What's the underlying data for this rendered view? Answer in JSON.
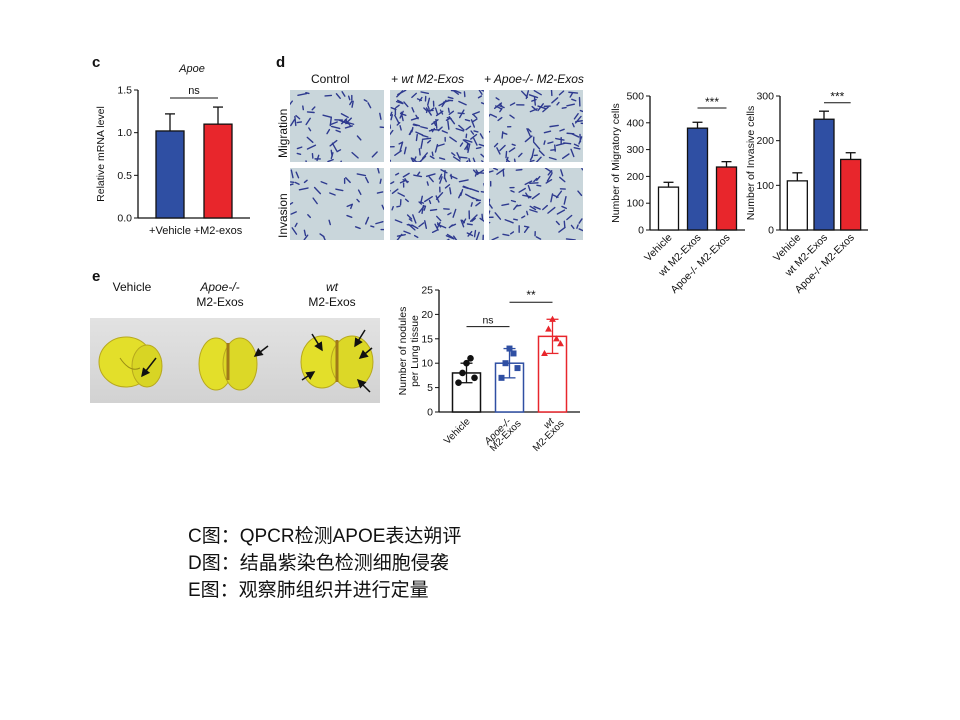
{
  "panels": {
    "c": "c",
    "d": "d",
    "e": "e"
  },
  "chart_data": [
    {
      "panel": "c",
      "type": "bar",
      "title": "Apoe",
      "ylabel": "Relative mRNA level",
      "categories": [
        "+Vehicle",
        "+M2-exos"
      ],
      "values": [
        1.02,
        1.1
      ],
      "errors": [
        0.2,
        0.2
      ],
      "colors": [
        "#2f4fa3",
        "#e8262c"
      ],
      "ylim": [
        0,
        1.5
      ],
      "yticks": [
        "0.0",
        "0.5",
        "1.0",
        "1.5"
      ],
      "significance": "ns"
    },
    {
      "panel": "d-migration",
      "type": "bar",
      "ylabel": "Number of  Migratory cells",
      "categories": [
        "Vehicle",
        "wt M2-Exos",
        "Apoe-/- M2-Exos"
      ],
      "values": [
        160,
        380,
        235
      ],
      "errors": [
        18,
        22,
        20
      ],
      "colors": [
        "#ffffff",
        "#2f4fa3",
        "#e8262c"
      ],
      "ylim": [
        0,
        500
      ],
      "yticks": [
        "0",
        "100",
        "200",
        "300",
        "400",
        "500"
      ],
      "significance": "***"
    },
    {
      "panel": "d-invasion",
      "type": "bar",
      "ylabel": "Number of Invasive cells",
      "categories": [
        "Vehicle",
        "wt M2-Exos",
        "Apoe-/- M2-Exos"
      ],
      "values": [
        110,
        248,
        158
      ],
      "errors": [
        18,
        18,
        15
      ],
      "colors": [
        "#ffffff",
        "#2f4fa3",
        "#e8262c"
      ],
      "ylim": [
        0,
        300
      ],
      "yticks": [
        "0",
        "100",
        "200",
        "300"
      ],
      "significance": "***"
    },
    {
      "panel": "e",
      "type": "scatter",
      "ylabel": "Number of nodules per Lung tissue",
      "categories": [
        "Vehicle",
        "Apoe-/- M2-Exos",
        "wt M2-Exos"
      ],
      "values": [
        8,
        10,
        15.5
      ],
      "errors": [
        2,
        3,
        3.5
      ],
      "points": [
        [
          6,
          8,
          10,
          11,
          7
        ],
        [
          7,
          10,
          13,
          12,
          9
        ],
        [
          12,
          17,
          19,
          15,
          14
        ]
      ],
      "colors": [
        "#111111",
        "#2f4fa3",
        "#e8262c"
      ],
      "ylim": [
        0,
        25
      ],
      "yticks": [
        "0",
        "5",
        "10",
        "15",
        "20",
        "25"
      ],
      "significance": [
        "ns",
        "**"
      ]
    }
  ],
  "panel_d": {
    "columns": [
      "Control",
      "+ wt M2-Exos",
      "+ Apoe-/- M2-Exos"
    ],
    "rows": [
      "Migration",
      "Invasion"
    ]
  },
  "panel_e": {
    "labels": [
      {
        "line1": "",
        "line2": "Vehicle"
      },
      {
        "line1": "Apoe-/-",
        "line2": "M2-Exos"
      },
      {
        "line1": "wt",
        "line2": "M2-Exos"
      }
    ]
  },
  "caption": [
    "C图：QPCR检测APOE表达朔评",
    "D图：结晶紫染色检测细胞侵袭",
    "E图：观察肺组织并进行定量"
  ]
}
